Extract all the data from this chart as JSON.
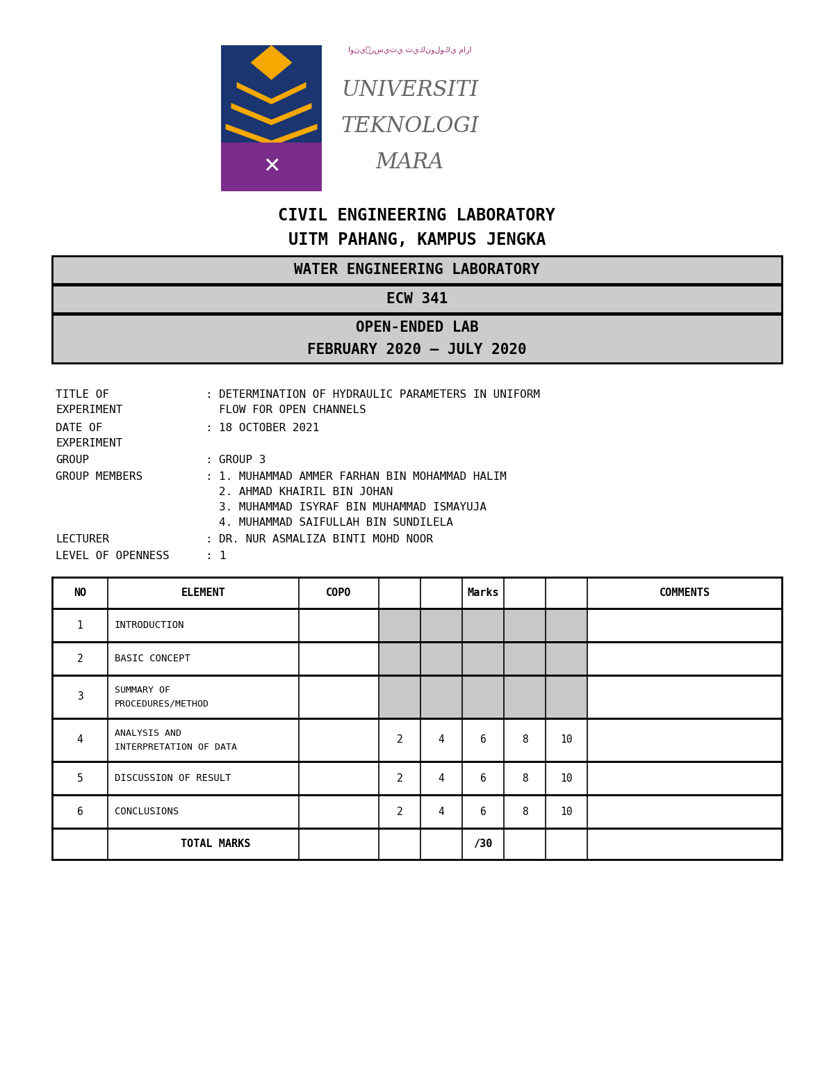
{
  "bg_color": "#ffffff",
  "header_line1": "CIVIL ENGINEERING LABORATORY",
  "header_line2": "UITM PAHANG, KAMPUS JENGKA",
  "box1_text": "WATER ENGINEERING LABORATORY",
  "box2_text": "ECW 341",
  "box3_line1": "OPEN-ENDED LAB",
  "box3_line2": "FEBRUARY 2020 – JULY 2020",
  "box_bg": "#cccccc",
  "box_border": "#000000",
  "table_rows": [
    {
      "no": "1",
      "element": "INTRODUCTION",
      "has_marks": false,
      "marks": []
    },
    {
      "no": "2",
      "element": "BASIC CONCEPT",
      "has_marks": false,
      "marks": []
    },
    {
      "no": "3",
      "element": "SUMMARY OF\nPROCEDURES/METHOD",
      "has_marks": false,
      "marks": []
    },
    {
      "no": "4",
      "element": "ANALYSIS AND\nINTERPRETATION OF DATA",
      "has_marks": true,
      "marks": [
        2,
        4,
        6,
        8,
        10
      ]
    },
    {
      "no": "5",
      "element": "DISCUSSION OF RESULT",
      "has_marks": true,
      "marks": [
        2,
        4,
        6,
        8,
        10
      ]
    },
    {
      "no": "6",
      "element": "CONCLUSIONS",
      "has_marks": true,
      "marks": [
        2,
        4,
        6,
        8,
        10
      ]
    }
  ],
  "total_marks": "/30",
  "gray_cell": "#c8c8c8",
  "font_color": "#000000",
  "logo_shield_color": "#1a3570",
  "logo_gold": "#f5a800",
  "logo_purple": "#7b2d8b",
  "logo_text_color": "#666666",
  "uitm_line1": "UNIVERSITI",
  "uitm_line2": "TEKNOLOGI",
  "uitm_line3": "MARA"
}
